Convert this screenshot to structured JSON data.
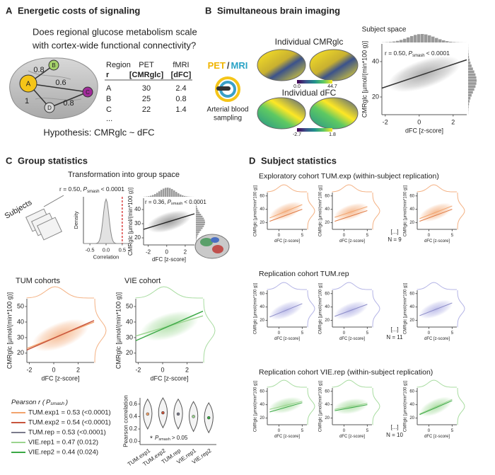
{
  "panel_a": {
    "letter": "A",
    "title": "Energetic costs of signaling",
    "question": [
      "Does regional glucose metabolism scale",
      "with cortex-wide functional connectivity?"
    ],
    "nodes": [
      "A",
      "B",
      "C",
      "D"
    ],
    "edge_weights": [
      0.8,
      0.6,
      1,
      0.8
    ],
    "table": {
      "header": [
        "Region",
        "PET",
        "fMRI"
      ],
      "units": [
        "r",
        "[CMRglc]",
        "[dFC]"
      ],
      "rows": [
        [
          "A",
          30,
          2.4
        ],
        [
          "B",
          25,
          0.8
        ],
        [
          "C",
          22,
          1.4
        ]
      ],
      "more": "..."
    },
    "hypothesis": "Hypothesis: CMRglc ~ dFC"
  },
  "panel_b": {
    "letter": "B",
    "title": "Simultaneous brain imaging",
    "modalities": [
      "PET",
      "/",
      "MRI"
    ],
    "sampling": [
      "Arterial blood",
      "sampling"
    ],
    "maps": [
      {
        "title": "Individual CMRglc",
        "colorbar": [
          "0.0",
          "44.7"
        ]
      },
      {
        "title": "Individual dFC",
        "colorbar": [
          "-2.7",
          "1.8"
        ]
      }
    ],
    "scatter": {
      "subtitle": "Subject space",
      "annotation": {
        "pre": "r = 0.50,",
        "sym": "P",
        "sub": "smash",
        "post": "< 0.0001"
      },
      "xlabel": "dFC [z-score]",
      "ylabel": "CMRglc [µmol/(min*100 g)]",
      "xlim": [
        -2.2,
        2.8
      ],
      "ylim": [
        10,
        50
      ],
      "xticks": [
        -2,
        0,
        2
      ],
      "yticks": [
        20,
        40
      ],
      "color": "#9e9e9e",
      "fits": [
        {
          "x": [
            -2.2,
            2.8
          ],
          "y": [
            25,
            41
          ],
          "color": "#333333"
        }
      ]
    }
  },
  "panel_c": {
    "letter": "C",
    "title": "Group statistics",
    "subtitle": "Transformation into group space",
    "subjects": "Subjects",
    "density": {
      "annotation": {
        "pre": "r = 0.50,",
        "sym": "P",
        "sub": "smash",
        "post": "< 0.0001"
      },
      "xlabel": "Correlation",
      "ylabel": "Density",
      "xlim": [
        -0.7,
        0.7
      ],
      "xticks": [
        -0.5,
        {
          "value": 0,
          "label": "0.0"
        },
        0.5
      ],
      "observed": 0.5
    },
    "scatter": {
      "annotation": {
        "pre": "r = 0.36,",
        "sym": "P",
        "sub": "smash",
        "post": "< 0.0001"
      },
      "xlabel": "dFC [z-score]",
      "ylabel": "CMRglc [µmol/(min*100 g)]",
      "xlim": [
        -2.5,
        3
      ],
      "ylim": [
        15,
        48
      ],
      "xticks": [
        -2,
        0,
        2
      ],
      "yticks": [
        20,
        30,
        40
      ],
      "color": "#8a8a8a",
      "fits": [
        {
          "x": [
            -2.5,
            3
          ],
          "y": [
            26,
            37
          ],
          "color": "#222222"
        }
      ]
    },
    "tum": {
      "title": "TUM cohorts",
      "xlabel": "dFC [z-score]",
      "ylabel": "CMRglc [µmol/(min*100 g)]",
      "xlim": [
        -2.2,
        3.3
      ],
      "ylim": [
        14,
        55
      ],
      "xticks": [
        -2,
        0,
        2
      ],
      "yticks": [
        20,
        30,
        40,
        50
      ],
      "color": "#f4b183",
      "fits": [
        {
          "x": [
            -2.2,
            3.3
          ],
          "y": [
            23,
            40
          ],
          "color": "#f2a46e"
        },
        {
          "x": [
            -2.2,
            3.3
          ],
          "y": [
            22,
            41
          ],
          "color": "#c8553d"
        }
      ]
    },
    "vie": {
      "title": "VIE cohort",
      "xlabel": "dFC [z-score]",
      "ylabel": "CMRglc [µmol/(min*100 g)]",
      "xlim": [
        -2.2,
        3.3
      ],
      "ylim": [
        14,
        55
      ],
      "xticks": [
        -2,
        0,
        2
      ],
      "yticks": [
        20,
        30,
        40,
        50
      ],
      "color": "#a8dca0",
      "fits": [
        {
          "x": [
            -2.2,
            3.3
          ],
          "y": [
            31,
            44
          ],
          "color": "#9bd48f"
        },
        {
          "x": [
            -2.2,
            3.3
          ],
          "y": [
            28,
            47
          ],
          "color": "#3aa845"
        }
      ]
    },
    "legend": {
      "title": {
        "pre": "Pearson r (",
        "sym": "P",
        "sub": "smash",
        "post": ")"
      },
      "entries": [
        {
          "label": "TUM.exp1 = 0.53 (<0.0001)",
          "color": "#f2a46e"
        },
        {
          "label": "TUM.exp2 = 0.54 (<0.0001)",
          "color": "#c8553d"
        },
        {
          "label": "TUM.rep = 0.53 (<0.0001)",
          "color": "#7b7b8c"
        },
        {
          "label": "VIE.rep1 = 0.47 (0.012)",
          "color": "#9bd48f"
        },
        {
          "label": "VIE.rep2 = 0.44 (0.024)",
          "color": "#3aa845"
        }
      ]
    },
    "violin": {
      "type": "violin",
      "ylabel": "Pearson correlation",
      "categories": [
        "TUM.exp1",
        "TUM.exp2",
        "TUM.rep",
        "VIE.rep1",
        "VIE.rep2"
      ],
      "values": [
        0.44,
        0.46,
        0.44,
        0.4,
        0.38
      ],
      "ylim": [
        -0.05,
        0.7
      ],
      "yticks": [
        {
          "value": 0,
          "label": "0.0"
        },
        0.2,
        0.4,
        0.6
      ],
      "note": {
        "sym": "P",
        "sub": "smash",
        "post": "> 0.05"
      }
    }
  },
  "panel_d": {
    "letter": "D",
    "title": "Subject statistics",
    "xlabel": "dFC [z-score]",
    "ylabel": "CMRglc [µmol/(min*100 g)]",
    "xlim": [
      -2.5,
      6
    ],
    "ylim": [
      10,
      65
    ],
    "xticks": [
      0,
      5
    ],
    "yticks": [
      20,
      40,
      60
    ],
    "ellipsis": "[...]",
    "rows": [
      {
        "title": "Exploratory cohort TUM.exp (within-subject replication)",
        "n": "N = 9",
        "color": "#f4b183",
        "plots": [
          {
            "fits": [
              {
                "x": [
                  -2,
                  5
                ],
                "y": [
                  27,
                  47
                ],
                "color": "#f2a46e"
              },
              {
                "x": [
                  -2,
                  5
                ],
                "y": [
                  22,
                  40
                ],
                "color": "#e07b45"
              }
            ]
          },
          {
            "fits": [
              {
                "x": [
                  -2,
                  5
                ],
                "y": [
                  28,
                  44
                ],
                "color": "#f2a46e"
              },
              {
                "x": [
                  -2,
                  5
                ],
                "y": [
                  22,
                  38
                ],
                "color": "#e07b45"
              }
            ]
          },
          {
            "fits": [
              {
                "x": [
                  -2,
                  5
                ],
                "y": [
                  26,
                  45
                ],
                "color": "#f2a46e"
              },
              {
                "x": [
                  -2,
                  5
                ],
                "y": [
                  22,
                  40
                ],
                "color": "#e07b45"
              }
            ]
          }
        ]
      },
      {
        "title": "Replication cohort TUM.rep",
        "n": "N = 11",
        "color": "#b4b4e6",
        "plots": [
          {
            "fits": [
              {
                "x": [
                  -2,
                  5
                ],
                "y": [
                  25,
                  45
                ],
                "color": "#8c8cc8"
              }
            ]
          },
          {
            "fits": [
              {
                "x": [
                  -2,
                  5
                ],
                "y": [
                  26,
                  44
                ],
                "color": "#8c8cc8"
              }
            ]
          },
          {
            "fits": [
              {
                "x": [
                  -2,
                  5
                ],
                "y": [
                  27,
                  46
                ],
                "color": "#8c8cc8"
              }
            ]
          }
        ]
      },
      {
        "title": "Replication cohort VIE.rep (within-subject replication)",
        "n": "N = 10",
        "color": "#a8dca0",
        "plots": [
          {
            "fits": [
              {
                "x": [
                  -2,
                  5
                ],
                "y": [
                  33,
                  45
                ],
                "color": "#9bd48f"
              },
              {
                "x": [
                  -2,
                  5
                ],
                "y": [
                  29,
                  43
                ],
                "color": "#3aa845"
              }
            ]
          },
          {
            "fits": [
              {
                "x": [
                  -2,
                  5
                ],
                "y": [
                  33,
                  42
                ],
                "color": "#9bd48f"
              },
              {
                "x": [
                  -2,
                  5
                ],
                "y": [
                  31,
                  40
                ],
                "color": "#3aa845"
              }
            ]
          },
          {
            "fits": [
              {
                "x": [
                  -2,
                  5
                ],
                "y": [
                  26,
                  48
                ],
                "color": "#9bd48f"
              },
              {
                "x": [
                  -2,
                  5
                ],
                "y": [
                  25,
                  46
                ],
                "color": "#3aa845"
              }
            ]
          }
        ]
      }
    ]
  }
}
